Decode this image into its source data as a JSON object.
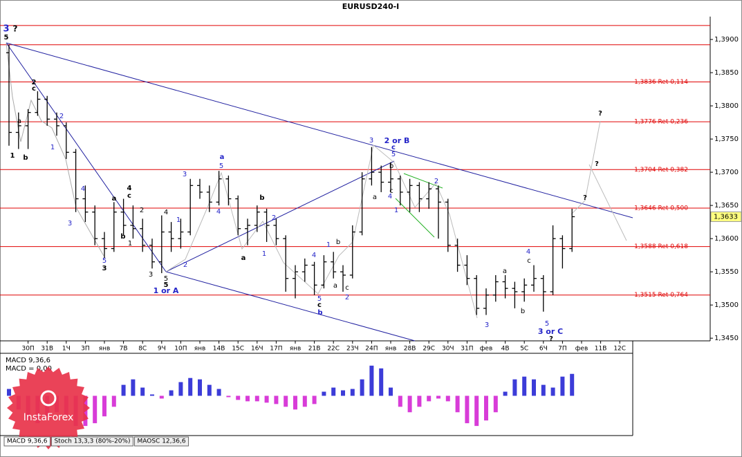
{
  "chart_data": [
    {
      "type": "ohlc",
      "title": "EURUSD240-I",
      "categories": [
        null,
        null,
        "30П",
        null,
        "31В",
        null,
        "1Ч",
        null,
        "3П",
        null,
        "янв",
        null,
        "7В",
        null,
        "8С",
        null,
        "9Ч",
        null,
        "10П",
        null,
        "янв",
        null,
        "14В",
        null,
        "15С",
        null,
        "16Ч",
        null,
        "17П",
        null,
        "янв",
        null,
        "21В",
        null,
        "22С",
        null,
        "23Ч",
        null,
        "24П",
        null,
        "янв",
        null,
        "28В",
        null,
        "29С",
        null,
        "30Ч",
        null,
        "31П",
        null,
        "фев",
        null,
        "4В",
        null,
        "5С",
        null,
        "6Ч",
        null,
        "7П",
        null,
        "фев",
        null,
        "11В",
        null,
        "12С"
      ],
      "open": [
        1.388,
        1.376,
        1.377,
        1.379,
        1.381,
        1.378,
        1.377,
        1.373,
        1.366,
        1.364,
        1.36,
        1.3585,
        1.364,
        1.362,
        1.3615,
        1.359,
        1.3565,
        1.361,
        1.36,
        1.361,
        1.368,
        1.367,
        1.3655,
        1.369,
        1.366,
        1.3615,
        1.362,
        1.364,
        1.362,
        1.36,
        1.354,
        1.355,
        1.356,
        1.353,
        1.3565,
        1.355,
        1.3545,
        1.361,
        1.369,
        1.37,
        1.3685,
        1.369,
        1.367,
        1.368,
        1.366,
        1.3675,
        1.3655,
        1.359,
        1.356,
        1.354,
        1.3495,
        1.3515,
        1.3535,
        1.3525,
        1.352,
        1.353,
        1.354,
        1.352,
        1.36,
        1.3585,
        null,
        null,
        null,
        null,
        null
      ],
      "high": [
        1.3892,
        1.379,
        1.3795,
        1.3822,
        1.3815,
        1.379,
        1.3775,
        1.3735,
        1.368,
        1.365,
        1.361,
        1.3655,
        1.366,
        1.365,
        1.363,
        1.36,
        1.3635,
        1.3625,
        1.363,
        1.369,
        1.369,
        1.368,
        1.3702,
        1.3695,
        1.3665,
        1.363,
        1.365,
        1.3645,
        1.363,
        1.3605,
        1.356,
        1.357,
        1.3565,
        1.3575,
        1.358,
        1.356,
        1.362,
        1.37,
        1.3738,
        1.371,
        1.3715,
        1.3695,
        1.369,
        1.3685,
        1.3685,
        1.368,
        1.366,
        1.36,
        1.3575,
        1.3545,
        1.3525,
        1.3545,
        1.3545,
        1.3535,
        1.354,
        1.356,
        1.3545,
        1.362,
        1.3605,
        1.3645,
        null,
        null,
        null,
        null,
        null
      ],
      "low": [
        1.374,
        1.3735,
        1.3735,
        1.3785,
        1.377,
        1.3755,
        1.372,
        1.364,
        1.3625,
        1.359,
        1.357,
        1.358,
        1.3605,
        1.36,
        1.358,
        1.3555,
        1.3548,
        1.358,
        1.3585,
        1.3605,
        1.366,
        1.364,
        1.365,
        1.365,
        1.3605,
        1.359,
        1.361,
        1.3595,
        1.359,
        1.352,
        1.351,
        1.3535,
        1.3515,
        1.3525,
        1.354,
        1.352,
        1.354,
        1.3605,
        1.368,
        1.367,
        1.367,
        1.365,
        1.364,
        1.364,
        1.3645,
        1.36,
        1.358,
        1.355,
        1.353,
        1.3485,
        1.3485,
        1.3505,
        1.351,
        1.3495,
        1.3505,
        1.352,
        1.349,
        1.3515,
        1.3555,
        1.358,
        null,
        null,
        null,
        null,
        null
      ],
      "close": [
        1.376,
        1.377,
        1.379,
        1.381,
        1.378,
        1.377,
        1.373,
        1.366,
        1.364,
        1.36,
        1.3585,
        1.364,
        1.362,
        1.3615,
        1.359,
        1.3565,
        1.361,
        1.36,
        1.361,
        1.368,
        1.367,
        1.3655,
        1.369,
        1.366,
        1.3615,
        1.362,
        1.364,
        1.362,
        1.36,
        1.354,
        1.355,
        1.356,
        1.353,
        1.3565,
        1.355,
        1.3545,
        1.361,
        1.369,
        1.37,
        1.3685,
        1.369,
        1.367,
        1.368,
        1.366,
        1.3675,
        1.3655,
        1.359,
        1.356,
        1.354,
        1.3495,
        1.3515,
        1.3535,
        1.3525,
        1.352,
        1.353,
        1.354,
        1.352,
        1.36,
        1.3585,
        1.3633,
        null,
        null,
        null,
        null,
        null
      ],
      "color": "#000000",
      "ylim": [
        1.3446,
        1.3923
      ],
      "yticks": [
        {
          "value": 1.345,
          "label": "1,3450"
        },
        {
          "value": 1.35,
          "label": "1,3500"
        },
        {
          "value": 1.355,
          "label": "1,3550"
        },
        {
          "value": 1.36,
          "label": "1,3600"
        },
        {
          "value": 1.365,
          "label": "1,3650"
        },
        {
          "value": 1.37,
          "label": "1,3700"
        },
        {
          "value": 1.375,
          "label": "1,3750"
        },
        {
          "value": 1.38,
          "label": "1,3800"
        },
        {
          "value": 1.385,
          "label": "1,3850"
        },
        {
          "value": 1.39,
          "label": "1,3900"
        }
      ],
      "levels": [
        {
          "value": 1.3836,
          "label": "1,3836 Ret 0,114"
        },
        {
          "value": 1.3776,
          "label": "1,3776 Ret 0,236"
        },
        {
          "value": 1.3704,
          "label": "1,3704 Ret 0,382"
        },
        {
          "value": 1.3646,
          "label": "1,3646 Ret 0,500"
        },
        {
          "value": 1.3588,
          "label": "1,3588 Ret 0,618"
        },
        {
          "value": 1.3515,
          "label": "1,3515 Ret 0,764"
        }
      ],
      "lines": [
        1.3921,
        1.3892
      ],
      "level_color": "#e00000",
      "last_price": {
        "value": 1.3633,
        "label": "1,3633"
      },
      "annotations": [
        "3",
        "?",
        "5",
        "a",
        "1",
        "b",
        "2",
        "c",
        "2",
        "1",
        "4",
        "3",
        "a",
        "4",
        "c",
        "2",
        "b",
        "1",
        "5",
        "3",
        "3",
        "4",
        "1",
        "5",
        "5",
        "1 or A",
        "2",
        "3",
        "a",
        "5",
        "4",
        "b",
        "2",
        "1",
        "a",
        "4",
        "1",
        "b",
        "a",
        "c",
        "2",
        "5",
        "c",
        "b",
        "3",
        "2 or B",
        "c",
        "5",
        "b",
        "c",
        "a",
        "4",
        "1",
        "2",
        "3",
        "a",
        "4",
        "c",
        "b",
        "5",
        "3 or C",
        "?",
        "?",
        "?",
        "?"
      ]
    },
    {
      "type": "histogram",
      "title": "MACD 9,36,6",
      "readout": "MACD = 0,00",
      "values": [
        0.0005,
        -0.001,
        -0.0018,
        -0.002,
        -0.0015,
        -0.0012,
        -0.0014,
        -0.0022,
        -0.0022,
        -0.002,
        -0.0015,
        -0.0008,
        0.0008,
        0.0012,
        0.0006,
        0.0001,
        -0.0002,
        0.0004,
        0.001,
        0.0013,
        0.0012,
        0.0008,
        0.0005,
        -0.0001,
        -0.0003,
        -0.0004,
        -0.0004,
        -0.0005,
        -0.0006,
        -0.0008,
        -0.001,
        -0.0008,
        -0.0006,
        0.0003,
        0.0006,
        0.0004,
        0.0005,
        0.0012,
        0.0022,
        0.002,
        0.0006,
        -0.0008,
        -0.0012,
        -0.0008,
        -0.0004,
        -0.0002,
        -0.0004,
        -0.0012,
        -0.002,
        -0.0022,
        -0.0018,
        -0.0012,
        0.0003,
        0.0012,
        0.0014,
        0.0012,
        0.0008,
        0.0006,
        0.0014,
        0.0016,
        null,
        null,
        null,
        null,
        null
      ],
      "ylim": [
        -0.0028,
        0.003
      ],
      "colors": {
        "positive": "#3c3cd8",
        "negative": "#d83cd8"
      }
    }
  ],
  "tabs": [
    "MACD 9,36,6",
    "Stoch 13,3,3 (80%-20%)",
    "MAOSC 12,36,6"
  ],
  "watermark": "InstaForex"
}
